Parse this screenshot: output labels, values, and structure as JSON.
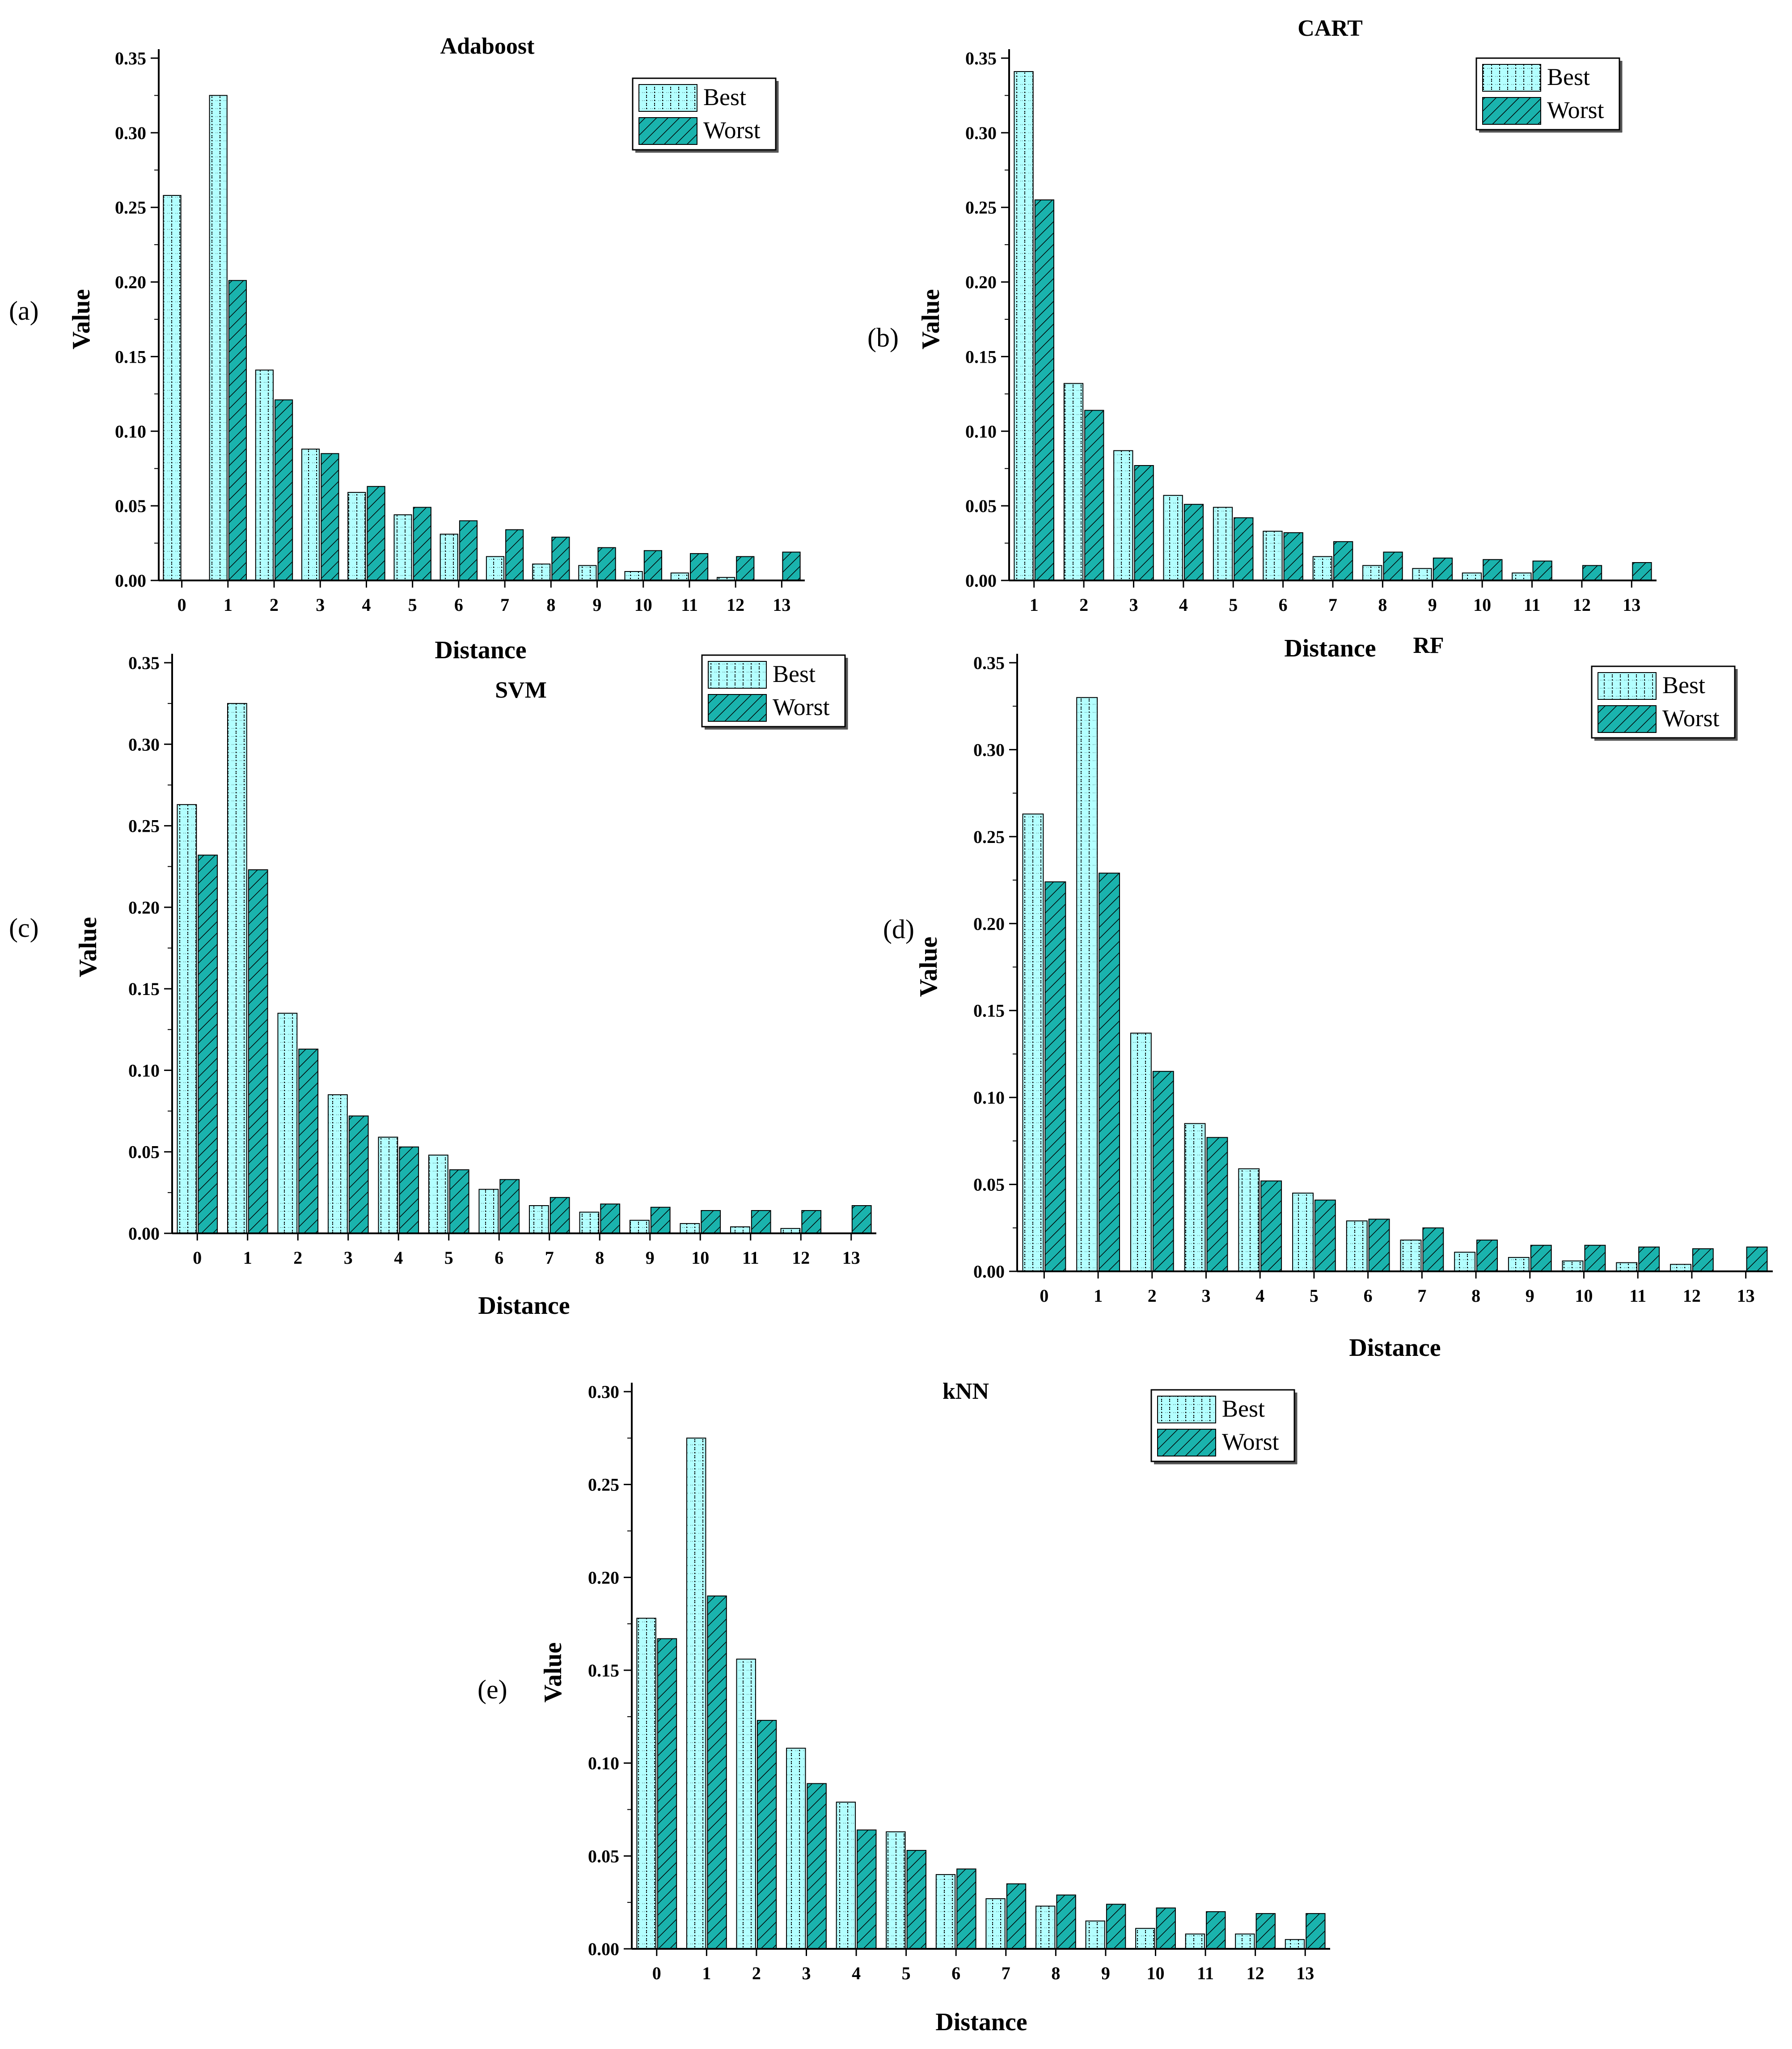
{
  "figure": {
    "colors": {
      "best": "#b3ffff",
      "worst": "#1ab3ad",
      "axis": "#000000"
    }
  },
  "chart_data": [
    {
      "type": "bar",
      "panel_label": "(a)",
      "title": "Adaboost",
      "xlabel": "Distance",
      "ylabel": "Value",
      "ylim": [
        0,
        0.35
      ],
      "yticks": [
        "0.00",
        "0.05",
        "0.10",
        "0.15",
        "0.20",
        "0.25",
        "0.30",
        "0.35"
      ],
      "categories": [
        "0",
        "1",
        "2",
        "3",
        "4",
        "5",
        "6",
        "7",
        "8",
        "9",
        "10",
        "11",
        "12",
        "13"
      ],
      "legend_position": "top-right",
      "series": [
        {
          "name": "Best",
          "values": [
            0.258,
            0.325,
            0.141,
            0.088,
            0.059,
            0.044,
            0.031,
            0.016,
            0.011,
            0.01,
            0.006,
            0.005,
            0.002,
            0.0
          ]
        },
        {
          "name": "Worst",
          "values": [
            0.0,
            0.201,
            0.121,
            0.085,
            0.063,
            0.049,
            0.04,
            0.034,
            0.029,
            0.022,
            0.02,
            0.018,
            0.016,
            0.019
          ]
        }
      ]
    },
    {
      "type": "bar",
      "panel_label": "(b)",
      "title": "CART",
      "xlabel": "Distance",
      "ylabel": "Value",
      "ylim": [
        0,
        0.35
      ],
      "yticks": [
        "0.00",
        "0.05",
        "0.10",
        "0.15",
        "0.20",
        "0.25",
        "0.30",
        "0.35"
      ],
      "categories": [
        "1",
        "2",
        "3",
        "4",
        "5",
        "6",
        "7",
        "8",
        "9",
        "10",
        "11",
        "12",
        "13"
      ],
      "legend_position": "top-right",
      "series": [
        {
          "name": "Best",
          "values": [
            0.341,
            0.132,
            0.087,
            0.057,
            0.049,
            0.033,
            0.016,
            0.01,
            0.008,
            0.005,
            0.005,
            0.0,
            0.0
          ]
        },
        {
          "name": "Worst",
          "values": [
            0.255,
            0.114,
            0.077,
            0.051,
            0.042,
            0.032,
            0.026,
            0.019,
            0.015,
            0.014,
            0.013,
            0.01,
            0.012
          ]
        }
      ]
    },
    {
      "type": "bar",
      "panel_label": "(c)",
      "title": "SVM",
      "xlabel": "Distance",
      "ylabel": "Value",
      "ylim": [
        0,
        0.35
      ],
      "yticks": [
        "0.00",
        "0.05",
        "0.10",
        "0.15",
        "0.20",
        "0.25",
        "0.30",
        "0.35"
      ],
      "categories": [
        "0",
        "1",
        "2",
        "3",
        "4",
        "5",
        "6",
        "7",
        "8",
        "9",
        "10",
        "11",
        "12",
        "13"
      ],
      "legend_position": "top-right",
      "series": [
        {
          "name": "Best",
          "values": [
            0.263,
            0.325,
            0.135,
            0.085,
            0.059,
            0.048,
            0.027,
            0.017,
            0.013,
            0.008,
            0.006,
            0.004,
            0.003,
            0.0
          ]
        },
        {
          "name": "Worst",
          "values": [
            0.232,
            0.223,
            0.113,
            0.072,
            0.053,
            0.039,
            0.033,
            0.022,
            0.018,
            0.016,
            0.014,
            0.014,
            0.014,
            0.017
          ]
        }
      ]
    },
    {
      "type": "bar",
      "panel_label": "(d)",
      "title": "RF",
      "xlabel": "Distance",
      "ylabel": "Value",
      "ylim": [
        0,
        0.35
      ],
      "yticks": [
        "0.00",
        "0.05",
        "0.10",
        "0.15",
        "0.20",
        "0.25",
        "0.30",
        "0.35"
      ],
      "categories": [
        "0",
        "1",
        "2",
        "3",
        "4",
        "5",
        "6",
        "7",
        "8",
        "9",
        "10",
        "11",
        "12",
        "13"
      ],
      "legend_position": "top-right",
      "series": [
        {
          "name": "Best",
          "values": [
            0.263,
            0.33,
            0.137,
            0.085,
            0.059,
            0.045,
            0.029,
            0.018,
            0.011,
            0.008,
            0.006,
            0.005,
            0.004,
            0.0
          ]
        },
        {
          "name": "Worst",
          "values": [
            0.224,
            0.229,
            0.115,
            0.077,
            0.052,
            0.041,
            0.03,
            0.025,
            0.018,
            0.015,
            0.015,
            0.014,
            0.013,
            0.014
          ]
        }
      ]
    },
    {
      "type": "bar",
      "panel_label": "(e)",
      "title": "kNN",
      "xlabel": "Distance",
      "ylabel": "Value",
      "ylim": [
        0,
        0.3
      ],
      "yticks": [
        "0.00",
        "0.05",
        "0.10",
        "0.15",
        "0.20",
        "0.25",
        "0.30"
      ],
      "categories": [
        "0",
        "1",
        "2",
        "3",
        "4",
        "5",
        "6",
        "7",
        "8",
        "9",
        "10",
        "11",
        "12",
        "13"
      ],
      "legend_position": "top-right",
      "series": [
        {
          "name": "Best",
          "values": [
            0.178,
            0.275,
            0.156,
            0.108,
            0.079,
            0.063,
            0.04,
            0.027,
            0.023,
            0.015,
            0.011,
            0.008,
            0.008,
            0.005
          ]
        },
        {
          "name": "Worst",
          "values": [
            0.167,
            0.19,
            0.123,
            0.089,
            0.064,
            0.053,
            0.043,
            0.035,
            0.029,
            0.024,
            0.022,
            0.02,
            0.019,
            0.019
          ]
        }
      ]
    }
  ]
}
